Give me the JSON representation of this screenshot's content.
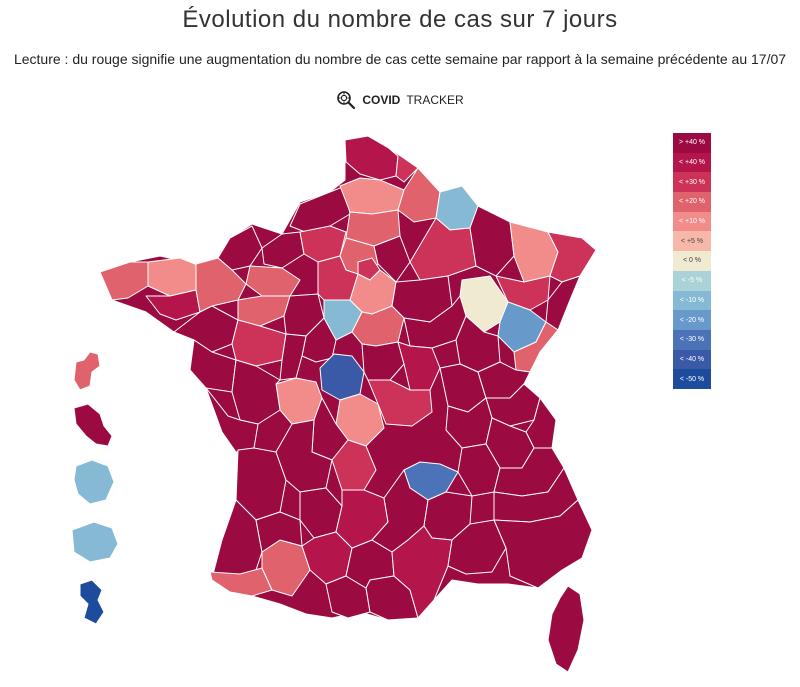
{
  "title": "Évolution du nombre de cas sur 7 jours",
  "subtitle": "Lecture : du rouge signifie une augmentation du nombre de cas cette semaine par rapport à la semaine précédente au 17/07",
  "brand": {
    "bold": "COVID",
    "light": "TRACKER"
  },
  "colors": {
    "gt40": "#9b0b41",
    "lt40": "#b4154b",
    "lt30": "#cd3258",
    "lt20": "#e0626c",
    "lt10": "#f18c8a",
    "lt5": "#f7b8a9",
    "lt0": "#f0ead0",
    "m5": "#a9d3d7",
    "m10": "#86bad4",
    "m20": "#6899cb",
    "m30": "#4c73b8",
    "m40": "#3a5aa8",
    "m50": "#1d4c9c",
    "border": "#ffffff"
  },
  "legend": [
    {
      "label": "> +40 %",
      "color": "#9b0b41"
    },
    {
      "label": "< +40 %",
      "color": "#b4154b"
    },
    {
      "label": "< +30 %",
      "color": "#cd3258"
    },
    {
      "label": "< +20 %",
      "color": "#e0626c"
    },
    {
      "label": "< +10 %",
      "color": "#f18c8a"
    },
    {
      "label": "< +5 %",
      "color": "#f7b8a9"
    },
    {
      "label": "< 0 %",
      "color": "#f0ead0"
    },
    {
      "label": "< -5 %",
      "color": "#a9d3d7"
    },
    {
      "label": "< -10 %",
      "color": "#86bad4"
    },
    {
      "label": "< -20 %",
      "color": "#6899cb"
    },
    {
      "label": "< -30 %",
      "color": "#4c73b8"
    },
    {
      "label": "< -40 %",
      "color": "#3a5aa8"
    },
    {
      "label": "< -50 %",
      "color": "#1d4c9c"
    }
  ]
}
